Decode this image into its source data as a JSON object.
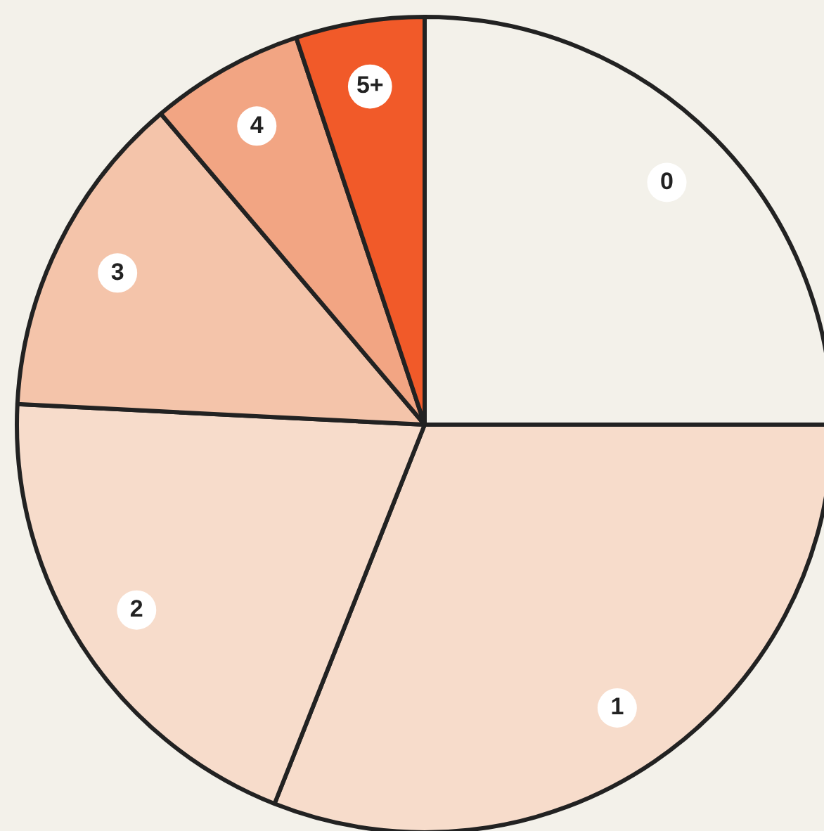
{
  "chart_data": {
    "type": "pie",
    "categories": [
      "0",
      "1",
      "2",
      "3",
      "4",
      "5+"
    ],
    "values": [
      25,
      31,
      19.8,
      13,
      6.1,
      5.1
    ],
    "colors": [
      "#f3f1ea",
      "#f7dccb",
      "#f7dccb",
      "#f4c4aa",
      "#f2a583",
      "#f15a29"
    ],
    "legend": false
  }
}
